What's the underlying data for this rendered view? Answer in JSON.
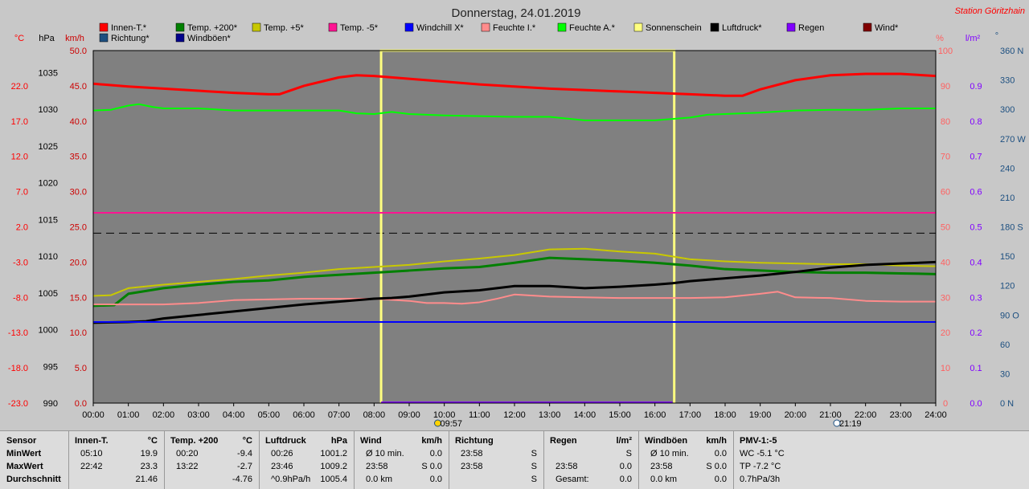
{
  "colors": {
    "background": "#c8c8c8",
    "plot_bg": "#808080",
    "innen": "#ff0000",
    "temp200": "#008000",
    "temp5": "#c8c800",
    "temp_m5": "#ff1493",
    "windchill": "#0000ff",
    "feuchte_i": "#ff8c8c",
    "feuchte_a": "#00ff00",
    "sonne": "#ffff80",
    "luftdruck": "#000000",
    "regen": "#8000ff",
    "wind": "#800000",
    "richtung": "#1c4f80",
    "windboeen": "#00008b"
  },
  "header": {
    "title": "Donnerstag, 24.01.2019",
    "station": "Station Göritzhain"
  },
  "axes": {
    "unit_c": "°C",
    "unit_hpa": "hPa",
    "unit_kmh": "km/h",
    "unit_pct": "%",
    "unit_lm2": "l/m²",
    "unit_deg": "°"
  },
  "legend": [
    {
      "label": "Innen-T.*",
      "color": "#ff0000"
    },
    {
      "label": "Temp. +200*",
      "color": "#008000"
    },
    {
      "label": "Temp. +5*",
      "color": "#c8c800"
    },
    {
      "label": "Temp. -5*",
      "color": "#ff1493"
    },
    {
      "label": "Windchill X*",
      "color": "#0000ff"
    },
    {
      "label": "Feuchte I.*",
      "color": "#ff8c8c"
    },
    {
      "label": "Feuchte A.*",
      "color": "#00ff00"
    },
    {
      "label": "Sonnenschein",
      "color": "#ffff80"
    },
    {
      "label": "Luftdruck*",
      "color": "#000000"
    },
    {
      "label": "Regen",
      "color": "#8000ff"
    },
    {
      "label": "Wind*",
      "color": "#800000"
    },
    {
      "label": "Richtung*",
      "color": "#1c4f80"
    },
    {
      "label": "Windböen*",
      "color": "#00008b"
    }
  ],
  "chart_data": {
    "type": "line",
    "x_unit": "hour",
    "xlim": [
      0,
      24
    ],
    "x_ticks": [
      "00:00",
      "01:00",
      "02:00",
      "03:00",
      "04:00",
      "05:00",
      "06:00",
      "07:00",
      "08:00",
      "09:00",
      "10:00",
      "11:00",
      "12:00",
      "13:00",
      "14:00",
      "15:00",
      "16:00",
      "17:00",
      "18:00",
      "19:00",
      "20:00",
      "21:00",
      "22:00",
      "23:00",
      "24:00"
    ],
    "ylim_kmh": [
      0,
      50
    ],
    "tick_c": [
      "22.0",
      "17.0",
      "12.0",
      "7.0",
      "2.0",
      "-3.0",
      "-8.0",
      "-13.0",
      "-18.0",
      "-23.0"
    ],
    "tick_hpa": [
      "1035",
      "1030",
      "1025",
      "1020",
      "1015",
      "1010",
      "1005",
      "1000",
      "995",
      "990"
    ],
    "tick_kmh": [
      "50.0",
      "45.0",
      "40.0",
      "35.0",
      "30.0",
      "25.0",
      "20.0",
      "15.0",
      "10.0",
      "5.0",
      "0.0"
    ],
    "tick_pct": [
      "100",
      "90",
      "80",
      "70",
      "60",
      "50",
      "40",
      "30",
      "20",
      "10",
      "0"
    ],
    "tick_lm2": [
      "0.9",
      "0.8",
      "0.7",
      "0.6",
      "0.5",
      "0.4",
      "0.3",
      "0.2",
      "0.1",
      "0.0"
    ],
    "tick_deg": [
      "360 N",
      "330",
      "300",
      "270 W",
      "240",
      "210",
      "180 S",
      "150",
      "120",
      "90 O",
      "60",
      "30",
      "0 N"
    ],
    "markers": [
      {
        "label": "09:57",
        "hour": 9.95
      },
      {
        "label": "21:19",
        "hour": 21.32
      }
    ],
    "grid": false,
    "series": [
      {
        "name": "Innen-T.*",
        "color_key": "innen",
        "width": 3,
        "x": [
          0,
          1,
          2,
          3,
          4,
          5,
          5.3,
          6,
          7,
          7.5,
          8,
          8.5,
          9,
          10,
          11,
          12,
          13,
          14,
          15,
          16,
          17,
          18,
          18.5,
          19,
          20,
          21,
          22,
          23,
          24
        ],
        "y": [
          45.3,
          44.9,
          44.6,
          44.3,
          44.0,
          43.8,
          43.8,
          45.0,
          46.2,
          46.5,
          46.4,
          46.2,
          46.0,
          45.6,
          45.2,
          44.9,
          44.6,
          44.4,
          44.2,
          44.0,
          43.8,
          43.6,
          43.6,
          44.5,
          45.8,
          46.5,
          46.7,
          46.7,
          46.4
        ]
      },
      {
        "name": "Feuchte A.*",
        "color_key": "feuchte_a",
        "width": 2,
        "x": [
          0,
          0.5,
          1,
          1.3,
          1.7,
          2,
          3,
          4,
          5,
          6,
          7,
          7.5,
          8,
          8.5,
          9,
          10,
          11,
          12,
          13,
          14,
          15,
          16,
          17,
          17.5,
          18,
          19,
          20,
          21,
          22,
          23,
          24
        ],
        "y": [
          41.5,
          41.6,
          42.2,
          42.4,
          42.0,
          41.8,
          41.8,
          41.5,
          41.5,
          41.5,
          41.5,
          41.1,
          41.0,
          41.3,
          41.0,
          40.8,
          40.7,
          40.6,
          40.6,
          40.1,
          40.1,
          40.1,
          40.5,
          40.9,
          41.0,
          41.2,
          41.5,
          41.6,
          41.6,
          41.8,
          41.8
        ]
      },
      {
        "name": "Temp. -5*",
        "color_key": "temp_m5",
        "width": 2,
        "x": [
          0,
          24
        ],
        "y": [
          27.0,
          27.0
        ]
      },
      {
        "name": "Temp. +5*",
        "color_key": "temp5",
        "width": 2,
        "x": [
          0,
          0.5,
          1,
          2,
          3,
          4,
          5,
          6,
          7,
          8,
          9,
          10,
          11,
          12,
          13,
          14,
          15,
          16,
          17,
          18,
          19,
          20,
          21,
          22,
          23,
          24
        ],
        "y": [
          15.2,
          15.3,
          16.3,
          16.8,
          17.2,
          17.6,
          18.1,
          18.5,
          19.0,
          19.3,
          19.6,
          20.1,
          20.5,
          21.0,
          21.8,
          21.9,
          21.5,
          21.2,
          20.4,
          20.1,
          19.9,
          19.8,
          19.7,
          19.7,
          19.5,
          19.4
        ]
      },
      {
        "name": "Temp. +200*",
        "color_key": "temp200",
        "width": 3,
        "x": [
          0,
          0.6,
          1,
          2,
          3,
          4,
          5,
          6,
          7,
          8,
          9,
          10,
          11,
          12,
          13,
          14,
          15,
          16,
          17,
          18,
          19,
          20,
          21,
          22,
          23,
          24
        ],
        "y": [
          13.8,
          13.9,
          15.5,
          16.3,
          16.8,
          17.2,
          17.4,
          17.9,
          18.2,
          18.5,
          18.8,
          19.1,
          19.3,
          19.9,
          20.6,
          20.4,
          20.2,
          19.9,
          19.5,
          19.0,
          18.8,
          18.6,
          18.5,
          18.5,
          18.4,
          18.3
        ]
      },
      {
        "name": "Feuchte I.*",
        "color_key": "feuchte_i",
        "width": 2,
        "x": [
          0,
          1,
          2,
          3,
          4,
          5,
          6,
          7,
          8,
          9,
          9.5,
          10,
          10.5,
          11,
          11.5,
          12,
          13,
          14,
          15,
          16,
          17,
          18,
          19,
          19.5,
          20,
          21,
          22,
          23,
          24
        ],
        "y": [
          14.0,
          14.0,
          14.0,
          14.2,
          14.6,
          14.7,
          14.8,
          14.8,
          14.8,
          14.5,
          14.2,
          14.2,
          14.1,
          14.3,
          14.8,
          15.4,
          15.1,
          15.0,
          14.9,
          14.9,
          14.9,
          15.0,
          15.5,
          15.8,
          15.0,
          14.9,
          14.5,
          14.4,
          14.4
        ]
      },
      {
        "name": "Luftdruck*",
        "color_key": "luftdruck",
        "width": 3,
        "x": [
          0,
          1,
          1.5,
          2,
          3,
          4,
          5,
          6,
          7,
          8,
          8.5,
          9,
          10,
          11,
          11.5,
          12,
          13,
          14,
          15,
          16,
          16.5,
          17,
          18,
          19,
          20,
          21,
          22,
          23,
          24
        ],
        "y": [
          11.4,
          11.5,
          11.6,
          12.0,
          12.5,
          13.0,
          13.5,
          14.0,
          14.4,
          14.8,
          14.9,
          15.1,
          15.7,
          16.0,
          16.3,
          16.6,
          16.6,
          16.3,
          16.5,
          16.8,
          17.0,
          17.3,
          17.7,
          18.1,
          18.6,
          19.2,
          19.6,
          19.8,
          20.0
        ]
      },
      {
        "name": "Windchill X*",
        "color_key": "windchill",
        "width": 2,
        "x": [
          0,
          24
        ],
        "y": [
          11.5,
          11.5
        ]
      },
      {
        "name": "Regen",
        "color_key": "regen",
        "width": 2,
        "x": [
          8.2,
          16.5
        ],
        "y": [
          0.1,
          0.1
        ]
      }
    ],
    "sunshine": {
      "name": "Sonnenschein",
      "color_key": "sonne",
      "start": 8.2,
      "end": 16.55,
      "level": 50.0
    },
    "dashed_line": {
      "y": 24.1,
      "color": "#000000"
    }
  },
  "stats": {
    "sensor": {
      "header": "Sensor",
      "rows": [
        "MinWert",
        "MaxWert",
        "Durchschnitt"
      ]
    },
    "innen": {
      "header": "Innen-T.",
      "unit": "°C",
      "r1_time": "05:10",
      "r1_val": "19.9",
      "r2_time": "22:42",
      "r2_val": "23.3",
      "r3_val": "21.46"
    },
    "temp200": {
      "header": "Temp. +200",
      "unit": "°C",
      "r1_time": "00:20",
      "r1_val": "-9.4",
      "r2_time": "13:22",
      "r2_val": "-2.7",
      "r3_val": "-4.76"
    },
    "luftdruck": {
      "header": "Luftdruck",
      "unit": "hPa",
      "r1_time": "00:26",
      "r1_val": "1001.2",
      "r2_time": "23:46",
      "r2_val": "1009.2",
      "r3_time": "^0.9hPa/h",
      "r3_val": "1005.4"
    },
    "wind": {
      "header": "Wind",
      "unit": "km/h",
      "r1_time": "Ø 10 min.",
      "r1_val": "0.0",
      "r2_time": "23:58",
      "r2_val": "S 0.0",
      "r3_time": "0.0 km",
      "r3_val": "0.0"
    },
    "richtung": {
      "header": "Richtung",
      "r1_time": "23:58",
      "r1_val": "S",
      "r2_time": "23:58",
      "r2_val": "S",
      "r3_val": "S"
    },
    "regen": {
      "header": "Regen",
      "unit": "l/m²",
      "r1_val": "S",
      "r2_time": "23:58",
      "r2_val": "0.0",
      "r3_time": "Gesamt:",
      "r3_val": "0.0"
    },
    "windboeen": {
      "header": "Windböen",
      "unit": "km/h",
      "r1_time": "Ø 10 min.",
      "r1_val": "0.0",
      "r2_time": "23:58",
      "r2_val": "S 0.0",
      "r3_time": "0.0 km",
      "r3_val": "0.0"
    },
    "pmv": {
      "header": "PMV-1:-5",
      "r1": "WC -5.1 °C",
      "r2": "TP -7.2 °C",
      "r3": "0.7hPa/3h"
    }
  }
}
